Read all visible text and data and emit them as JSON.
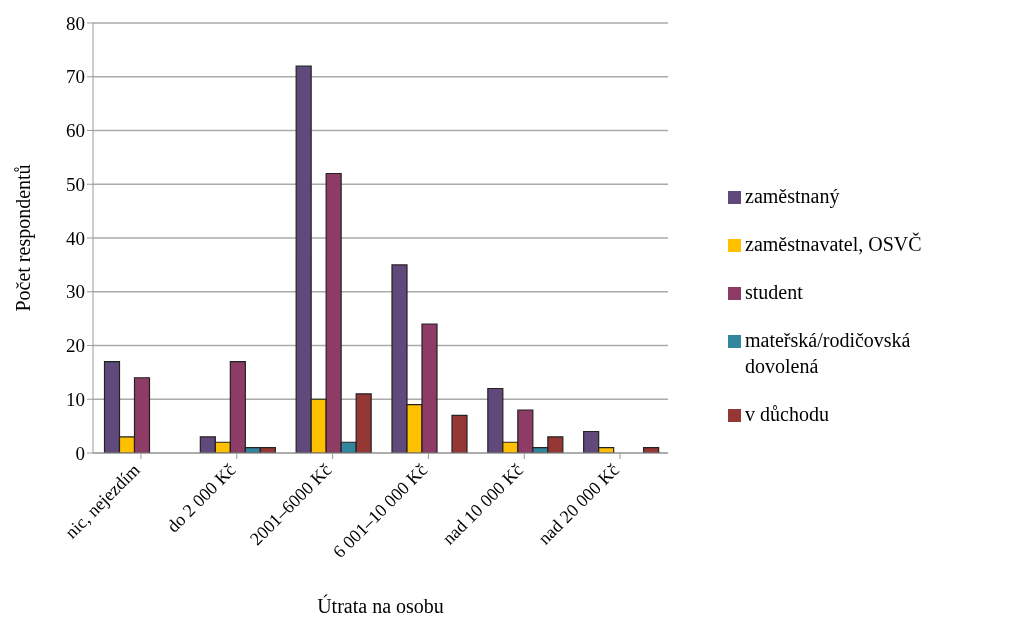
{
  "chart_data": {
    "type": "bar",
    "xlabel": "Útrata na osobu",
    "ylabel": "Počet respondentů",
    "categories": [
      "nic, nejezdím",
      "do 2 000 Kč",
      "2001–6000 Kč",
      "6 001–10 000 Kč",
      "nad 10 000 Kč",
      "nad 20 000 Kč"
    ],
    "series": [
      {
        "name": "zaměstnaný",
        "color": "#604a7b",
        "values": [
          17,
          3,
          72,
          35,
          12,
          4
        ]
      },
      {
        "name": "zaměstnavatel, OSVČ",
        "color": "#ffc000",
        "values": [
          3,
          2,
          10,
          9,
          2,
          1
        ]
      },
      {
        "name": "student",
        "color": "#8e3b66",
        "values": [
          14,
          17,
          52,
          24,
          8,
          0
        ]
      },
      {
        "name": "mateřská/rodičovská dovolená",
        "color": "#31859c",
        "values": [
          0,
          1,
          2,
          0,
          1,
          0
        ]
      },
      {
        "name": "v důchodu",
        "color": "#953735",
        "values": [
          0,
          1,
          11,
          7,
          3,
          1
        ]
      }
    ],
    "ylim": [
      0,
      80
    ],
    "yticks": [
      0,
      10,
      20,
      30,
      40,
      50,
      60,
      70,
      80
    ],
    "grid": "y",
    "legend": "right"
  }
}
